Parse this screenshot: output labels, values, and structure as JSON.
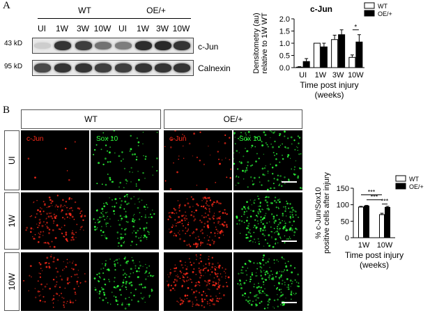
{
  "panel_a": {
    "letter": "A",
    "blot": {
      "groups": [
        "WT",
        "OE/+"
      ],
      "lanes": [
        "UI",
        "1W",
        "3W",
        "10W",
        "UI",
        "1W",
        "3W",
        "10W"
      ],
      "size_markers": [
        "43 kD",
        "95 kD"
      ],
      "proteins": [
        "c-Jun",
        "Calnexin"
      ],
      "cjun_band_intensity": [
        0.12,
        0.85,
        0.8,
        0.55,
        0.5,
        0.88,
        0.9,
        0.85
      ],
      "calnexin_band_intensity": [
        0.75,
        0.85,
        0.85,
        0.8,
        0.8,
        0.85,
        0.85,
        0.85
      ]
    }
  },
  "panel_b": {
    "letter": "B",
    "groups": [
      "WT",
      "OE/+"
    ],
    "rows": [
      "UI",
      "1W",
      "10W"
    ],
    "stains": [
      "c-Jun",
      "Sox 10",
      "c-Jun",
      "Sox 10"
    ],
    "colors": {
      "red": "#ff2a1a",
      "green": "#2cff3a"
    }
  },
  "chart_data": [
    {
      "type": "bar",
      "title": "c-Jun",
      "categories": [
        "UI",
        "1W",
        "3W",
        "10W"
      ],
      "series": [
        {
          "name": "WT",
          "values": [
            0.02,
            1.0,
            1.15,
            0.42
          ],
          "errors": [
            0.02,
            0.0,
            0.18,
            0.1
          ]
        },
        {
          "name": "OE/+",
          "values": [
            0.25,
            0.85,
            1.35,
            1.05
          ],
          "errors": [
            0.12,
            0.15,
            0.2,
            0.3
          ]
        }
      ],
      "ylabel": "Densitometry (au) relative to 1W WT",
      "xlabel": "Time post injury (weeks)",
      "yticks": [
        "0.0",
        "0.5",
        "1.0",
        "1.5",
        "2.0"
      ],
      "ylim": [
        0,
        2.0
      ],
      "significance": [
        {
          "category": "10W",
          "label": "*"
        }
      ],
      "legend": "top-right",
      "colors": {
        "WT": "#ffffff",
        "OE/+": "#000000"
      }
    },
    {
      "type": "bar",
      "categories": [
        "1W",
        "10W"
      ],
      "series": [
        {
          "name": "WT",
          "values": [
            93,
            70
          ],
          "errors": [
            2,
            4
          ]
        },
        {
          "name": "OE/+",
          "values": [
            96,
            92
          ],
          "errors": [
            2,
            3
          ]
        }
      ],
      "ylabel": "% c-Jun/Sox10 positive cells after injury",
      "xlabel": "Time post injury (weeks)",
      "yticks": [
        "0",
        "50",
        "100",
        "150"
      ],
      "ylim": [
        0,
        150
      ],
      "significance": [
        {
          "label": "***",
          "span": "1W WT - 10W WT"
        },
        {
          "label": "***",
          "span": "1W OE/+ - 10W WT"
        },
        {
          "label": "***",
          "span": "10W WT - 10W OE/+"
        }
      ],
      "legend": "top-right",
      "colors": {
        "WT": "#ffffff",
        "OE/+": "#000000"
      }
    }
  ]
}
